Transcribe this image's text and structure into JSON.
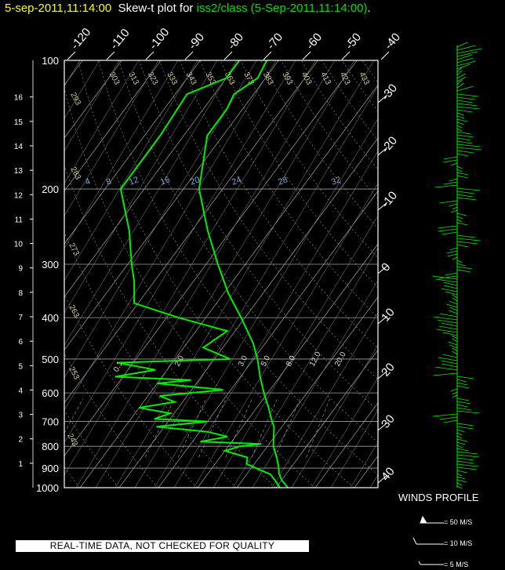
{
  "header": {
    "time": "5-sep-2011,11:14:00",
    "middle": "Skew-t plot for",
    "source": "iss2/class (5-Sep-2011,11:14:00)",
    "end": "."
  },
  "notice": "REAL-TIME DATA, NOT CHECKED FOR QUALITY",
  "winds": {
    "title": "WINDS PROFILE",
    "legend": [
      "= 50 M/S",
      "= 10 M/S",
      "= 5 M/S"
    ]
  },
  "colors": {
    "profile": "#00ee00",
    "title_time": "#ffff00",
    "grid": "#ffffff",
    "mixing": "#7fa8d8",
    "dry_adiabat": "#d8c89c",
    "moist_adiabat": "#ffffff"
  },
  "chart_data": {
    "type": "skew-t",
    "pressure_ticks": [
      100,
      200,
      300,
      400,
      500,
      600,
      700,
      800,
      900,
      1000
    ],
    "height_ticks_km": [
      1,
      2,
      3,
      4,
      5,
      6,
      7,
      8,
      9,
      10,
      11,
      12,
      13,
      14,
      15,
      16
    ],
    "temp_top_ticks": [
      "-120",
      "-110",
      "-100",
      "-90",
      "-80",
      "-70",
      "-60",
      "-50",
      "-40"
    ],
    "temp_right_ticks": [
      "-30",
      "-20",
      "-10",
      "0",
      "10",
      "20",
      "30",
      "40"
    ],
    "dry_adiabat_labels": [
      "293",
      "303",
      "313",
      "323",
      "333",
      "343",
      "353",
      "363",
      "373",
      "383",
      "393",
      "403",
      "413",
      "423",
      "433",
      "283",
      "273",
      "263",
      "253",
      "243"
    ],
    "mixing_ratio_labels": [
      "4",
      "8",
      "12",
      "16",
      "20",
      "24",
      "28",
      "32"
    ],
    "moist_labels": [
      "0.1",
      "1",
      "2.0",
      "3.0",
      "5.0",
      "8.0",
      "12.0",
      "20.0"
    ],
    "ylim": [
      1000,
      100
    ],
    "temperature": [
      [
        1000,
        23
      ],
      [
        960,
        20
      ],
      [
        925,
        18
      ],
      [
        900,
        17
      ],
      [
        850,
        14.5
      ],
      [
        800,
        11.5
      ],
      [
        720,
        8
      ],
      [
        700,
        6.5
      ],
      [
        650,
        3
      ],
      [
        600,
        -1
      ],
      [
        550,
        -5
      ],
      [
        500,
        -9
      ],
      [
        460,
        -13
      ],
      [
        400,
        -21
      ],
      [
        350,
        -29
      ],
      [
        300,
        -37
      ],
      [
        250,
        -46
      ],
      [
        200,
        -56
      ],
      [
        150,
        -64
      ],
      [
        130,
        -64
      ],
      [
        120,
        -65
      ],
      [
        110,
        -62
      ],
      [
        100,
        -63
      ]
    ],
    "dewpoint": [
      [
        1000,
        21
      ],
      [
        970,
        19
      ],
      [
        930,
        16
      ],
      [
        905,
        12
      ],
      [
        880,
        8
      ],
      [
        850,
        7
      ],
      [
        820,
        0
      ],
      [
        800,
        3
      ],
      [
        790,
        8
      ],
      [
        780,
        -8
      ],
      [
        760,
        -2
      ],
      [
        740,
        -8
      ],
      [
        720,
        -22
      ],
      [
        700,
        -10
      ],
      [
        690,
        -24
      ],
      [
        670,
        -21
      ],
      [
        650,
        -30
      ],
      [
        630,
        -22
      ],
      [
        610,
        -27
      ],
      [
        590,
        -12
      ],
      [
        570,
        -30
      ],
      [
        560,
        -22
      ],
      [
        550,
        -42
      ],
      [
        530,
        -33
      ],
      [
        510,
        -44
      ],
      [
        500,
        -16
      ],
      [
        470,
        -25
      ],
      [
        430,
        -22
      ],
      [
        400,
        -37
      ],
      [
        370,
        -51
      ],
      [
        330,
        -55
      ],
      [
        300,
        -59
      ],
      [
        250,
        -66
      ],
      [
        200,
        -76
      ],
      [
        150,
        -76
      ],
      [
        120,
        -77
      ],
      [
        110,
        -70
      ],
      [
        100,
        -70
      ]
    ]
  }
}
